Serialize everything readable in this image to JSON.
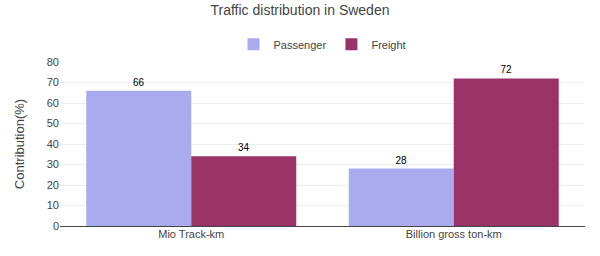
{
  "chart_data": {
    "type": "bar",
    "title": "Traffic distribution in Sweden",
    "categories": [
      "Mio Track-km",
      "Billion gross ton-km"
    ],
    "series": [
      {
        "name": "Passenger",
        "color": "#aaaaee",
        "values": [
          66,
          28
        ]
      },
      {
        "name": "Freight",
        "color": "#993366",
        "values": [
          34,
          72
        ]
      }
    ],
    "ylabel": "Contribution(%)",
    "ylim": [
      0,
      80
    ],
    "yticks": [
      0,
      10,
      20,
      30,
      40,
      50,
      60,
      70,
      80
    ],
    "grid": true,
    "legend": "upper center",
    "data_labels": true
  }
}
